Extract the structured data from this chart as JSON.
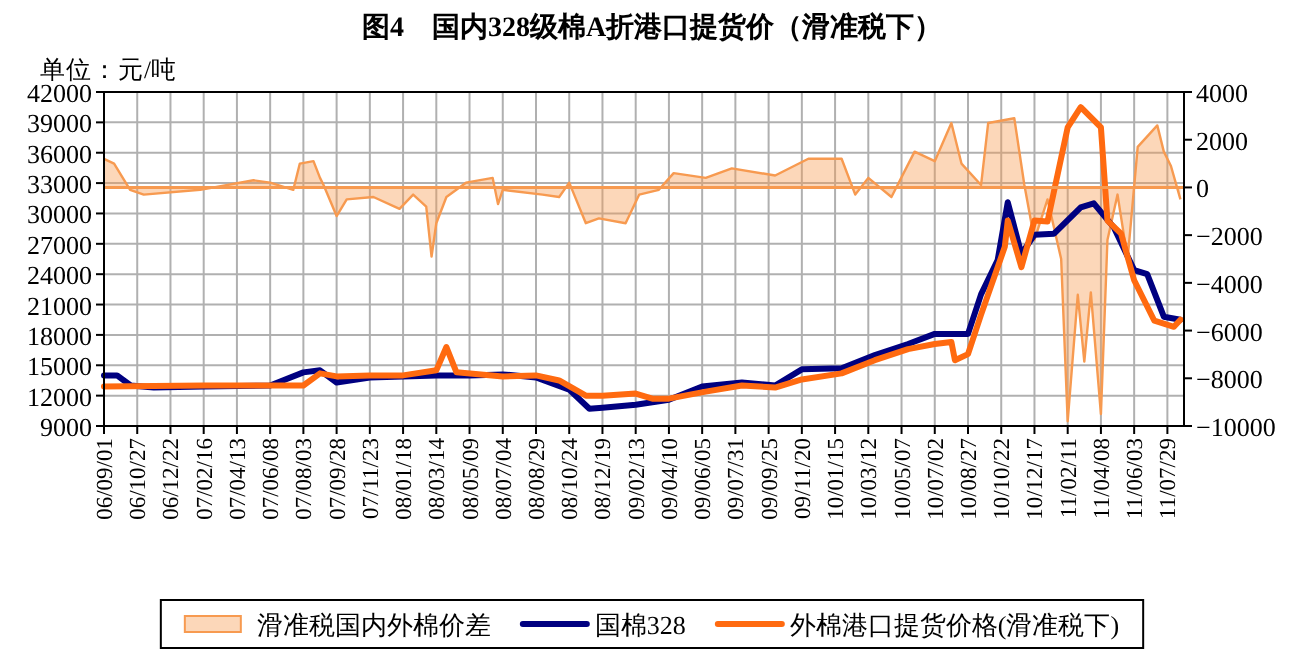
{
  "chart_data": {
    "type": "line",
    "title": "图4　国内328级棉A折港口提货价（滑准税下）",
    "ylabel": "单位：元/吨",
    "xlim": [
      "2006-09-01",
      "2011-08-26"
    ],
    "xticks": [
      {
        "value": "2006-09-01",
        "label": "06/09/01"
      },
      {
        "value": "2006-10-27",
        "label": "06/10/27"
      },
      {
        "value": "2006-12-22",
        "label": "06/12/22"
      },
      {
        "value": "2007-02-16",
        "label": "07/02/16"
      },
      {
        "value": "2007-04-13",
        "label": "07/04/13"
      },
      {
        "value": "2007-06-08",
        "label": "07/06/08"
      },
      {
        "value": "2007-08-03",
        "label": "07/08/03"
      },
      {
        "value": "2007-09-28",
        "label": "07/09/28"
      },
      {
        "value": "2007-11-23",
        "label": "07/11/23"
      },
      {
        "value": "2008-01-18",
        "label": "08/01/18"
      },
      {
        "value": "2008-03-14",
        "label": "08/03/14"
      },
      {
        "value": "2008-05-09",
        "label": "08/05/09"
      },
      {
        "value": "2008-07-04",
        "label": "08/07/04"
      },
      {
        "value": "2008-08-29",
        "label": "08/08/29"
      },
      {
        "value": "2008-10-24",
        "label": "08/10/24"
      },
      {
        "value": "2008-12-19",
        "label": "08/12/19"
      },
      {
        "value": "2009-02-13",
        "label": "09/02/13"
      },
      {
        "value": "2009-04-10",
        "label": "09/04/10"
      },
      {
        "value": "2009-06-05",
        "label": "09/06/05"
      },
      {
        "value": "2009-07-31",
        "label": "09/07/31"
      },
      {
        "value": "2009-09-25",
        "label": "09/09/25"
      },
      {
        "value": "2009-11-20",
        "label": "09/11/20"
      },
      {
        "value": "2010-01-15",
        "label": "10/01/15"
      },
      {
        "value": "2010-03-12",
        "label": "10/03/12"
      },
      {
        "value": "2010-05-07",
        "label": "10/05/07"
      },
      {
        "value": "2010-07-02",
        "label": "10/07/02"
      },
      {
        "value": "2010-08-27",
        "label": "10/08/27"
      },
      {
        "value": "2010-10-22",
        "label": "10/10/22"
      },
      {
        "value": "2010-12-17",
        "label": "10/12/17"
      },
      {
        "value": "2011-02-11",
        "label": "11/02/11"
      },
      {
        "value": "2011-04-08",
        "label": "11/04/08"
      },
      {
        "value": "2011-06-03",
        "label": "11/06/03"
      },
      {
        "value": "2011-07-29",
        "label": "11/07/29"
      }
    ],
    "ylim": [
      9000,
      42000
    ],
    "yticks": [
      9000,
      12000,
      15000,
      18000,
      21000,
      24000,
      27000,
      30000,
      33000,
      36000,
      39000,
      42000
    ],
    "y2lim": [
      -10000,
      4000
    ],
    "y2ticks": [
      -10000,
      -8000,
      -6000,
      -4000,
      -2000,
      0,
      2000,
      4000
    ],
    "grid": true,
    "legend": "bottom",
    "ref_lines": [
      {
        "axis": "y2",
        "value": 0,
        "color": "#f79a50"
      }
    ],
    "series": [
      {
        "name": "滑准税国内外棉价差",
        "type": "area",
        "axis": "y2",
        "color": "#f79a50",
        "x": [
          "2006-09-01",
          "2006-09-18",
          "2006-10-15",
          "2006-11-07",
          "2007-02-10",
          "2007-05-11",
          "2007-06-08",
          "2007-07-17",
          "2007-07-28",
          "2007-08-20",
          "2007-08-31",
          "2007-09-06",
          "2007-09-28",
          "2007-10-15",
          "2007-11-29",
          "2008-01-12",
          "2008-02-04",
          "2008-02-26",
          "2008-03-06",
          "2008-03-14",
          "2008-03-31",
          "2008-05-03",
          "2008-06-17",
          "2008-06-26",
          "2008-07-04",
          "2008-09-09",
          "2008-10-07",
          "2008-10-24",
          "2008-11-21",
          "2008-12-13",
          "2009-01-27",
          "2009-02-19",
          "2009-03-24",
          "2009-04-18",
          "2009-06-11",
          "2009-07-25",
          "2009-10-06",
          "2009-12-01",
          "2010-01-26",
          "2010-02-18",
          "2010-03-12",
          "2010-04-20",
          "2010-05-29",
          "2010-07-02",
          "2010-07-30",
          "2010-08-16",
          "2010-09-18",
          "2010-09-30",
          "2010-11-13",
          "2010-11-30",
          "2010-12-17",
          "2011-01-08",
          "2011-01-31",
          "2011-02-11",
          "2011-02-28",
          "2011-03-11",
          "2011-03-22",
          "2011-04-08",
          "2011-04-19",
          "2011-05-06",
          "2011-05-23",
          "2011-06-09",
          "2011-07-12",
          "2011-07-23",
          "2011-08-04",
          "2011-08-20"
        ],
        "values": [
          1200,
          1000,
          -100,
          -300,
          -100,
          300,
          200,
          -100,
          1000,
          1100,
          400,
          100,
          -1200,
          -500,
          -400,
          -900,
          -300,
          -800,
          -2900,
          -1500,
          -400,
          200,
          400,
          -700,
          -100,
          -300,
          -400,
          200,
          -1500,
          -1300,
          -1500,
          -300,
          -100,
          600,
          400,
          800,
          500,
          1200,
          1200,
          -300,
          400,
          -400,
          1500,
          1100,
          2700,
          1000,
          100,
          2700,
          2900,
          100,
          -2200,
          -500,
          -3000,
          -9800,
          -4500,
          -7300,
          -4400,
          -9500,
          -2200,
          -300,
          -3000,
          1700,
          2600,
          1500,
          900,
          -500
        ]
      },
      {
        "name": "国棉328",
        "type": "line",
        "color": "#000080",
        "x": [
          "2006-09-01",
          "2006-09-23",
          "2006-10-16",
          "2006-11-24",
          "2007-02-16",
          "2007-06-08",
          "2007-08-03",
          "2007-08-31",
          "2007-09-28",
          "2007-11-23",
          "2008-01-18",
          "2008-03-14",
          "2008-05-09",
          "2008-07-04",
          "2008-08-29",
          "2008-10-24",
          "2008-11-27",
          "2008-12-19",
          "2009-02-13",
          "2009-04-10",
          "2009-06-05",
          "2009-08-11",
          "2009-10-06",
          "2009-11-20",
          "2010-01-26",
          "2010-03-23",
          "2010-05-18",
          "2010-07-02",
          "2010-08-27",
          "2010-09-18",
          "2010-10-16",
          "2010-11-02",
          "2010-11-25",
          "2010-12-17",
          "2011-01-19",
          "2011-03-05",
          "2011-03-27",
          "2011-04-30",
          "2011-06-03",
          "2011-06-25",
          "2011-07-23",
          "2011-08-20"
        ],
        "values": [
          14000,
          14000,
          13000,
          12800,
          12900,
          13000,
          14300,
          14500,
          13300,
          13800,
          13900,
          14000,
          14000,
          14100,
          13800,
          12600,
          10700,
          10800,
          11100,
          11600,
          12900,
          13300,
          13000,
          14600,
          14700,
          16000,
          17100,
          18100,
          18100,
          22000,
          25400,
          31100,
          26000,
          27900,
          28000,
          30600,
          31000,
          28600,
          24400,
          24000,
          19800,
          19500
        ]
      },
      {
        "name": "外棉港口提货价格(滑准税下)",
        "type": "line",
        "color": "#ff6a10",
        "x": [
          "2006-09-01",
          "2007-02-16",
          "2007-08-03",
          "2007-08-31",
          "2007-09-28",
          "2007-11-23",
          "2008-01-18",
          "2008-03-14",
          "2008-03-31",
          "2008-04-17",
          "2008-07-04",
          "2008-08-29",
          "2008-10-07",
          "2008-11-21",
          "2008-12-19",
          "2009-02-13",
          "2009-03-13",
          "2009-04-10",
          "2009-06-11",
          "2009-08-11",
          "2009-10-06",
          "2009-11-20",
          "2010-01-26",
          "2010-03-23",
          "2010-05-18",
          "2010-07-02",
          "2010-07-30",
          "2010-08-05",
          "2010-08-27",
          "2010-09-18",
          "2010-10-28",
          "2010-11-02",
          "2010-11-25",
          "2010-12-17",
          "2011-01-08",
          "2011-02-11",
          "2011-03-05",
          "2011-04-08",
          "2011-04-19",
          "2011-05-12",
          "2011-06-03",
          "2011-07-07",
          "2011-08-09",
          "2011-08-20"
        ],
        "values": [
          12900,
          13000,
          13000,
          14200,
          13900,
          14000,
          14000,
          14500,
          16800,
          14300,
          13900,
          14000,
          13500,
          12000,
          12000,
          12200,
          11700,
          11700,
          12400,
          13000,
          12800,
          13600,
          14200,
          15500,
          16600,
          17100,
          17300,
          15500,
          16100,
          20000,
          26700,
          29300,
          24700,
          29300,
          29200,
          38500,
          40500,
          38500,
          29300,
          28000,
          23400,
          19400,
          18800,
          19500
        ]
      }
    ]
  }
}
